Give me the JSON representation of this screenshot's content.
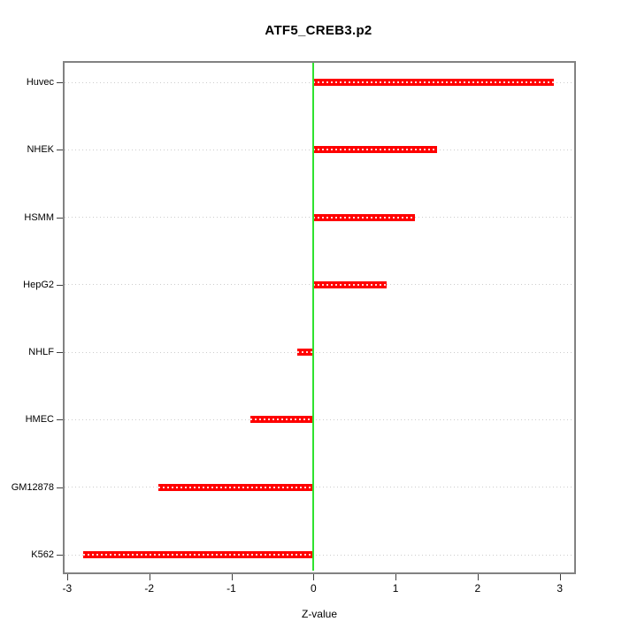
{
  "chart_data": {
    "type": "bar",
    "orientation": "horizontal",
    "title": "ATF5_CREB3.p2",
    "xlabel": "Z-value",
    "categories": [
      "Huvec",
      "NHEK",
      "HSMM",
      "HepG2",
      "NHLF",
      "HMEC",
      "GM12878",
      "K562"
    ],
    "values": [
      2.93,
      1.51,
      1.24,
      0.89,
      -0.2,
      -0.77,
      -1.89,
      -2.81
    ],
    "xlim": [
      -3.05,
      3.15
    ],
    "x_ticks": [
      -3,
      -2,
      -1,
      0,
      1,
      2,
      3
    ],
    "grid": true,
    "gridline_style": "dotted",
    "legend_position": "none",
    "colors": {
      "bar": "#ff0000",
      "zero_line": "#2fe22f",
      "gridline": "#cccccc",
      "box_border": "#828282",
      "tick": "#404040",
      "text": "#000000",
      "background": "#ffffff"
    }
  }
}
